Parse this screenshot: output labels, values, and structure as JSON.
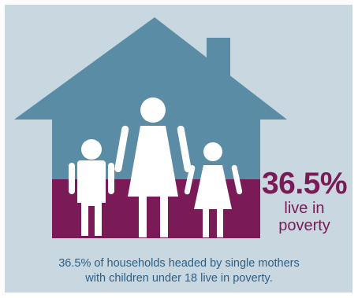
{
  "colors": {
    "background_panel": "#c9d7e1",
    "house_roof": "#5b8ca6",
    "house_base": "#7a1a57",
    "figures": "#ffffff",
    "stat_text": "#7a1a57",
    "caption_text": "#2b5f84"
  },
  "illustration": {
    "icons": [
      "house-icon",
      "chimney-icon",
      "boy-figure-icon",
      "mother-figure-icon",
      "girl-figure-icon"
    ]
  },
  "stat": {
    "percentage": "36.5%",
    "line1": "live in",
    "line2": "poverty"
  },
  "caption": {
    "line1": "36.5% of households headed by single mothers",
    "line2": "with children under 18 live in poverty."
  }
}
